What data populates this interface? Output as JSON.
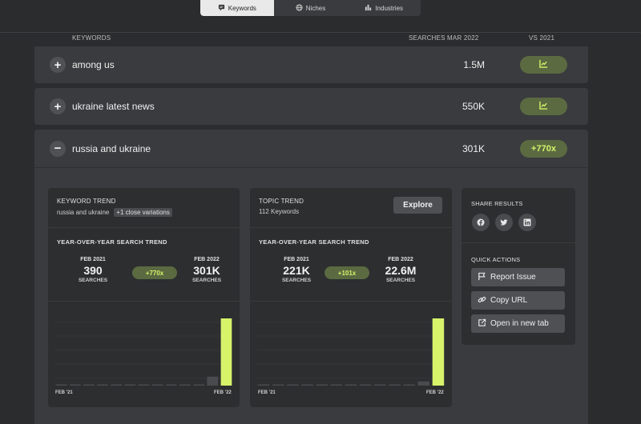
{
  "tabs": [
    {
      "label": "Keywords",
      "icon": "chat-bubble-icon",
      "active": true
    },
    {
      "label": "Niches",
      "icon": "globe-icon",
      "active": false
    },
    {
      "label": "Industries",
      "icon": "bar-chart-icon",
      "active": false
    }
  ],
  "columns": {
    "keywords": "KEYWORDS",
    "searches": "SEARCHES MAR 2022",
    "vs": "VS 2021"
  },
  "rows": [
    {
      "keyword": "among us",
      "volume": "1.5M",
      "toggle": "+",
      "badge_icon": "trend-chart-icon"
    },
    {
      "keyword": "ukraine latest news",
      "volume": "550K",
      "toggle": "+",
      "badge_icon": "trend-chart-icon"
    },
    {
      "keyword": "russia and ukraine",
      "volume": "301K",
      "toggle": "−",
      "badge": "+770x"
    }
  ],
  "keyword_trend": {
    "title": "KEYWORD TREND",
    "keyword": "russia and ukraine",
    "variations": "+1 close variations",
    "yoy_title": "YEAR-OVER-YEAR SEARCH TREND",
    "from": {
      "label": "FEB 2021",
      "value": "390",
      "unit": "SEARCHES"
    },
    "to": {
      "label": "FEB 2022",
      "value": "301K",
      "unit": "SEARCHES"
    },
    "change": "+770x",
    "axis_start": "FEB '21",
    "axis_end": "FEB '22"
  },
  "topic_trend": {
    "title": "TOPIC TREND",
    "subtitle": "112 Keywords",
    "explore_label": "Explore",
    "yoy_title": "YEAR-OVER-YEAR SEARCH TREND",
    "from": {
      "label": "FEB 2021",
      "value": "221K",
      "unit": "SEARCHES"
    },
    "to": {
      "label": "FEB 2022",
      "value": "22.6M",
      "unit": "SEARCHES"
    },
    "change": "+101x",
    "axis_start": "FEB '21",
    "axis_end": "FEB '22"
  },
  "share": {
    "title": "SHARE RESULTS",
    "icons": [
      "facebook-icon",
      "twitter-icon",
      "linkedin-icon"
    ]
  },
  "quick_actions": {
    "title": "QUICK ACTIONS",
    "items": [
      {
        "label": "Report Issue",
        "icon": "flag-icon"
      },
      {
        "label": "Copy URL",
        "icon": "link-icon"
      },
      {
        "label": "Open in new tab",
        "icon": "external-link-icon"
      }
    ]
  },
  "colors": {
    "accent": "#d6f36a",
    "accent_bg": "#5b6a41",
    "bar_muted": "#4a4b4e"
  },
  "chart_data": [
    {
      "type": "bar",
      "categories": [
        "FEB '21",
        "",
        "",
        "",
        "",
        "",
        "",
        "",
        "",
        "",
        "",
        "",
        "FEB '22"
      ],
      "values": [
        390,
        800,
        5000,
        700,
        600,
        600,
        600,
        500,
        600,
        700,
        2500,
        40000,
        301000
      ],
      "ylim": [
        0,
        301000
      ],
      "grid": true
    },
    {
      "type": "bar",
      "categories": [
        "FEB '21",
        "",
        "",
        "",
        "",
        "",
        "",
        "",
        "",
        "",
        "",
        "",
        "FEB '22"
      ],
      "values": [
        221000,
        200000,
        250000,
        230000,
        250000,
        250000,
        220000,
        220000,
        230000,
        210000,
        220000,
        1400000,
        22600000
      ],
      "ylim": [
        0,
        22600000
      ],
      "grid": true
    }
  ]
}
